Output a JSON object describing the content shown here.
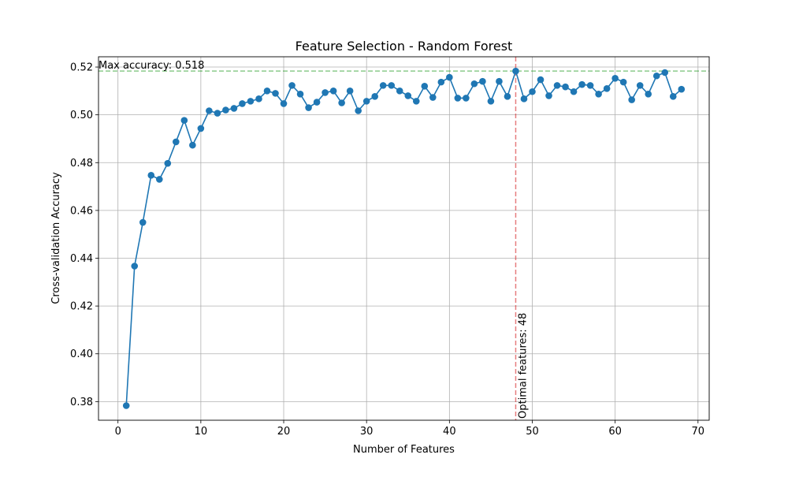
{
  "chart_data": {
    "type": "line",
    "title": "Feature Selection - Random Forest",
    "xlabel": "Number of Features",
    "ylabel": "Cross-validation Accuracy",
    "xlim": [
      -2.35,
      71.35
    ],
    "ylim": [
      0.3722,
      0.5243
    ],
    "xticks": [
      0,
      10,
      20,
      30,
      40,
      50,
      60,
      70
    ],
    "yticks": [
      0.38,
      0.4,
      0.42,
      0.44,
      0.46,
      0.48,
      0.5,
      0.52
    ],
    "grid": true,
    "series": [
      {
        "color": "#1f77b4",
        "x": [
          1,
          2,
          3,
          4,
          5,
          6,
          7,
          8,
          9,
          10,
          11,
          12,
          13,
          14,
          15,
          16,
          17,
          18,
          19,
          20,
          21,
          22,
          23,
          24,
          25,
          26,
          27,
          28,
          29,
          30,
          31,
          32,
          33,
          34,
          35,
          36,
          37,
          38,
          39,
          40,
          41,
          42,
          43,
          44,
          45,
          46,
          47,
          48,
          49,
          50,
          51,
          52,
          53,
          54,
          55,
          56,
          57,
          58,
          59,
          60,
          61,
          62,
          63,
          64,
          65,
          66,
          67,
          68
        ],
        "y": [
          0.3783,
          0.4367,
          0.455,
          0.4747,
          0.473,
          0.4797,
          0.4887,
          0.4977,
          0.4873,
          0.4943,
          0.5017,
          0.5007,
          0.502,
          0.5027,
          0.5047,
          0.5057,
          0.5067,
          0.51,
          0.509,
          0.5047,
          0.5123,
          0.5087,
          0.503,
          0.5053,
          0.5093,
          0.51,
          0.505,
          0.51,
          0.5017,
          0.5057,
          0.5077,
          0.5123,
          0.5123,
          0.51,
          0.508,
          0.5057,
          0.512,
          0.5073,
          0.5137,
          0.5157,
          0.507,
          0.507,
          0.513,
          0.514,
          0.5057,
          0.514,
          0.5077,
          0.5183,
          0.5067,
          0.5097,
          0.5147,
          0.508,
          0.5123,
          0.5117,
          0.5097,
          0.5127,
          0.5123,
          0.5087,
          0.511,
          0.5153,
          0.5137,
          0.5063,
          0.5123,
          0.5087,
          0.5163,
          0.5177,
          0.5077,
          0.5107
        ]
      }
    ],
    "max_line": {
      "y": 0.5183,
      "color": "#2ca02c",
      "label": "Max accuracy: 0.518"
    },
    "optimal_line": {
      "x": 48,
      "color": "#d62728",
      "label": "Optimal features: 48"
    }
  }
}
